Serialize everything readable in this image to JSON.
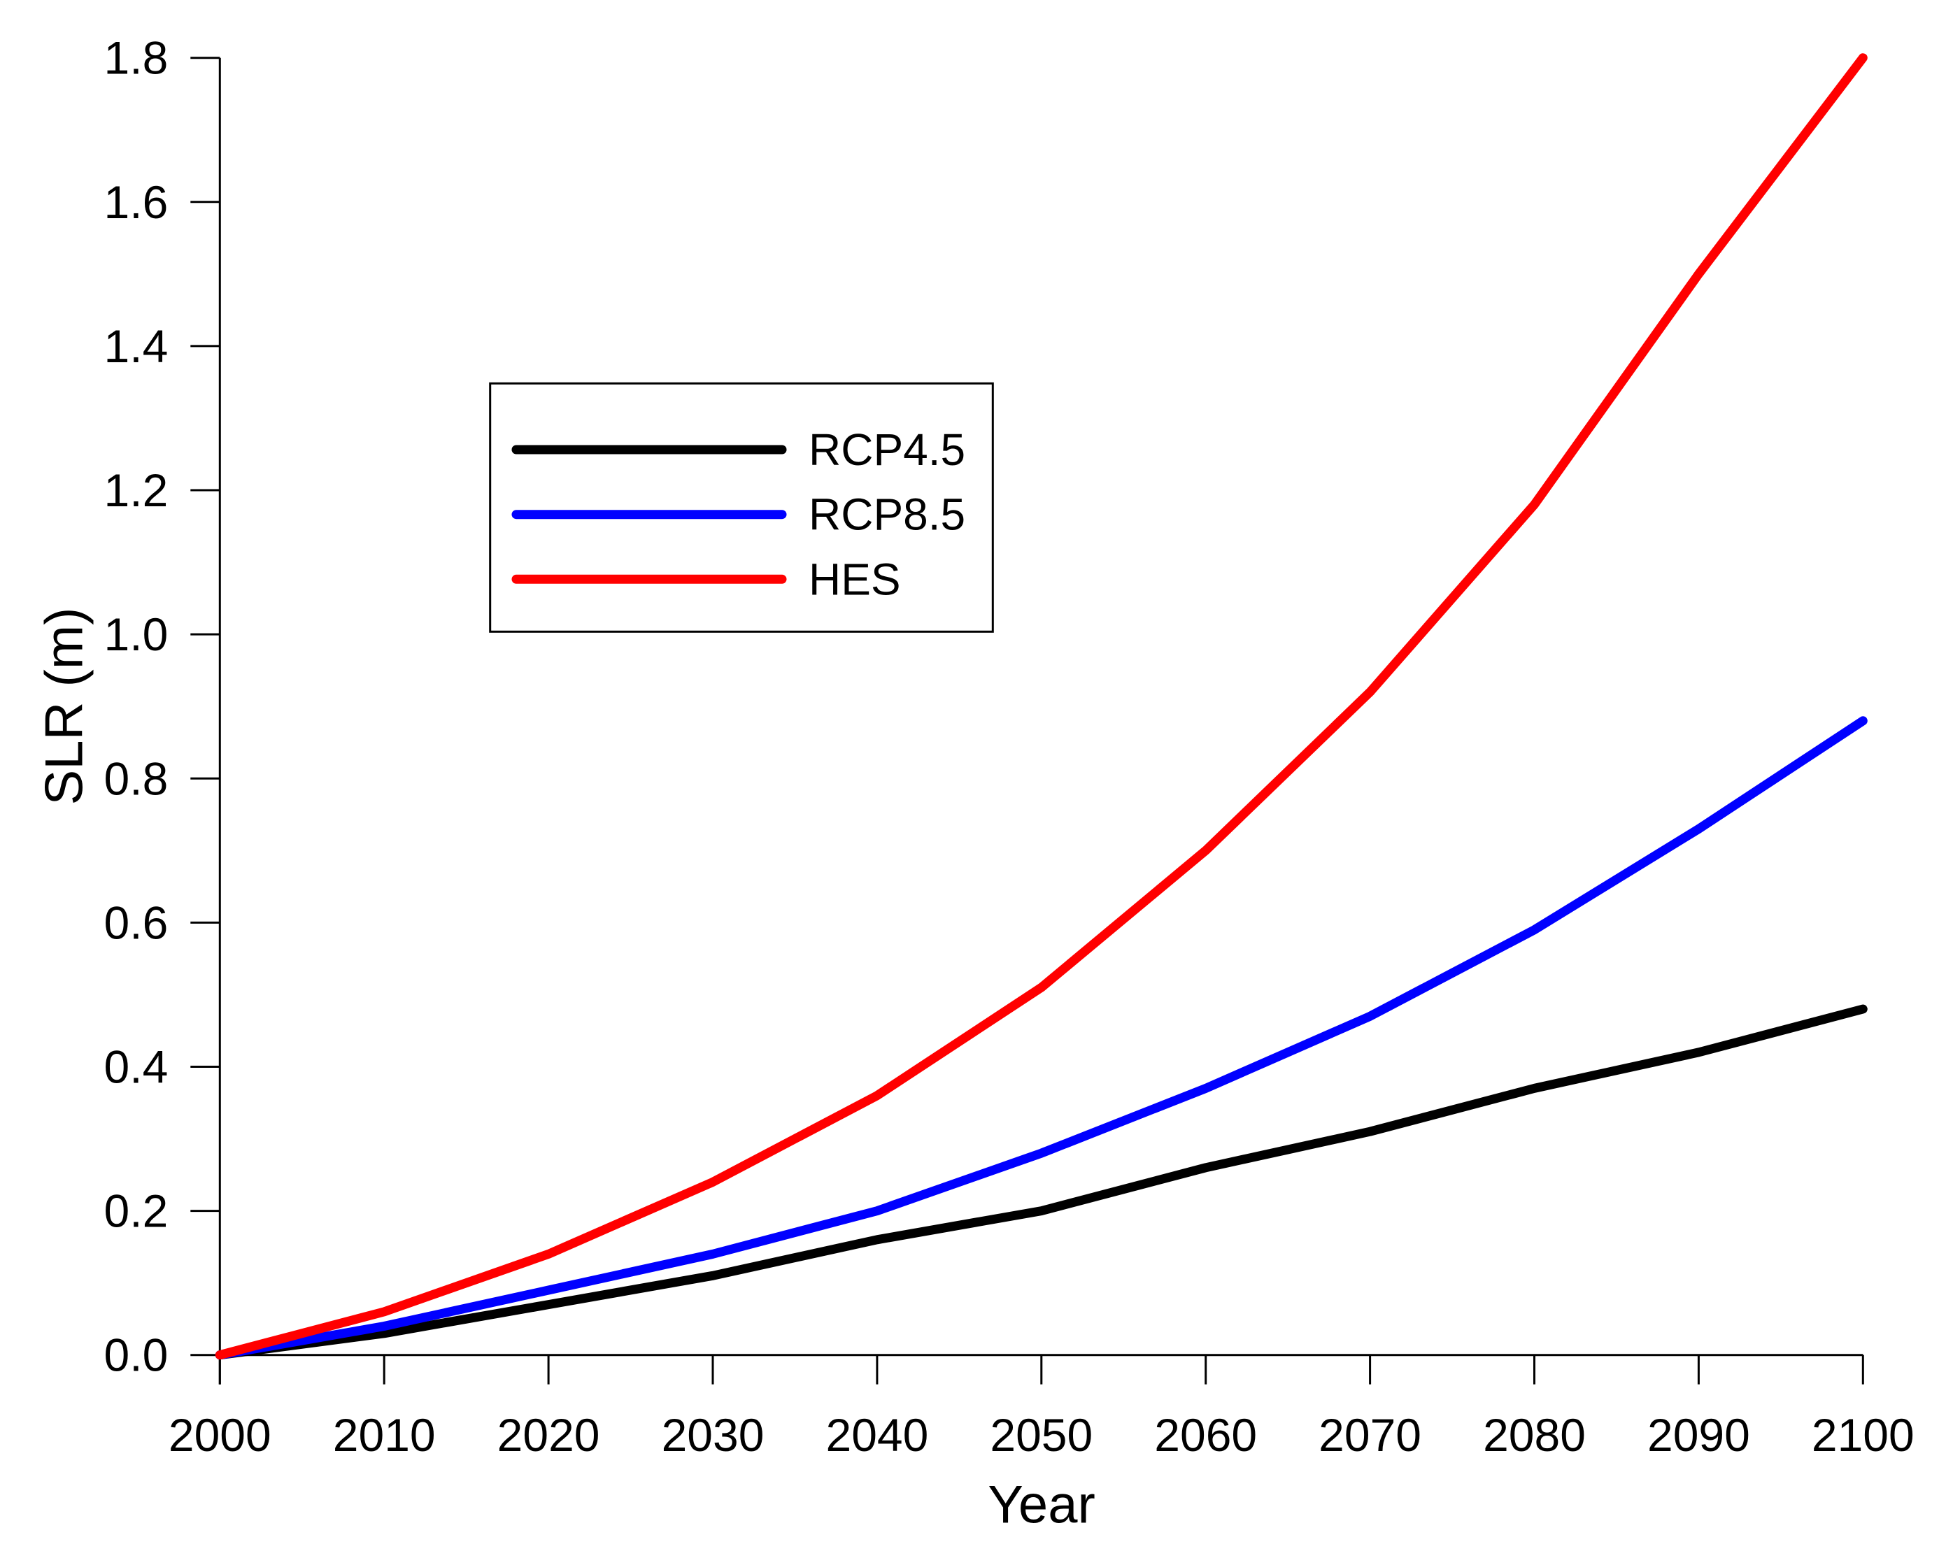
{
  "chart_data": {
    "type": "line",
    "title": "",
    "xlabel": "Year",
    "ylabel": "SLR (m)",
    "x": [
      2000,
      2010,
      2020,
      2030,
      2040,
      2050,
      2060,
      2070,
      2080,
      2090,
      2100
    ],
    "series": [
      {
        "name": "RCP4.5",
        "color": "#000000",
        "values": [
          0.0,
          0.03,
          0.07,
          0.11,
          0.16,
          0.2,
          0.26,
          0.31,
          0.37,
          0.42,
          0.48
        ]
      },
      {
        "name": "RCP8.5",
        "color": "#0000ff",
        "values": [
          0.0,
          0.04,
          0.09,
          0.14,
          0.2,
          0.28,
          0.37,
          0.47,
          0.59,
          0.73,
          0.88
        ]
      },
      {
        "name": "HES",
        "color": "#ff0000",
        "values": [
          0.0,
          0.06,
          0.14,
          0.24,
          0.36,
          0.51,
          0.7,
          0.92,
          1.18,
          1.5,
          1.8
        ]
      }
    ],
    "xlim": [
      2000,
      2100
    ],
    "ylim": [
      0.0,
      1.8
    ],
    "x_ticks": [
      2000,
      2010,
      2020,
      2030,
      2040,
      2050,
      2060,
      2070,
      2080,
      2090,
      2100
    ],
    "y_ticks": [
      0.0,
      0.2,
      0.4,
      0.6,
      0.8,
      1.0,
      1.2,
      1.4,
      1.6,
      1.8
    ],
    "y_tick_decimals": 1,
    "grid": false,
    "legend_position": "upper-left-inside",
    "axis_color": "#000000",
    "background": "#ffffff"
  }
}
